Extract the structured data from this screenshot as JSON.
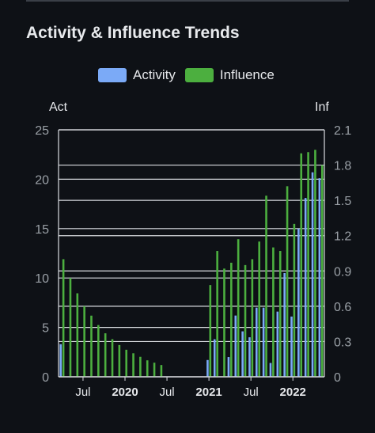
{
  "title": "Activity & Influence Trends",
  "legend": [
    {
      "label": "Activity",
      "color": "#7baaf7"
    },
    {
      "label": "Influence",
      "color": "#4caf3f"
    }
  ],
  "chart_data": {
    "type": "bar",
    "left_axis": {
      "title": "Act",
      "min": 0,
      "max": 25,
      "ticks": [
        "0",
        "5",
        "10",
        "15",
        "20",
        "25"
      ]
    },
    "right_axis": {
      "title": "Inf",
      "min": 0,
      "max": 2.1,
      "ticks": [
        "0",
        "0.3",
        "0.6",
        "0.9",
        "1.2",
        "1.5",
        "1.8",
        "2.1"
      ]
    },
    "x_ticks": [
      {
        "label": "Jul",
        "index": 3,
        "bold": false
      },
      {
        "label": "2020",
        "index": 9,
        "bold": true
      },
      {
        "label": "Jul",
        "index": 15,
        "bold": false
      },
      {
        "label": "2021",
        "index": 21,
        "bold": true
      },
      {
        "label": "Jul",
        "index": 27,
        "bold": false
      },
      {
        "label": "2022",
        "index": 33,
        "bold": true
      }
    ],
    "series": [
      {
        "name": "Activity",
        "color": "#7baaf7",
        "values": [
          3.3,
          0,
          0,
          0,
          0,
          0,
          0,
          0,
          0,
          0,
          0,
          0,
          0,
          0,
          0,
          0,
          0,
          0,
          0,
          0,
          0,
          1.7,
          3.8,
          0,
          2.0,
          6.2,
          4.6,
          4.0,
          7.0,
          7.0,
          1.4,
          6.6,
          10.5,
          6.1,
          15.0,
          18.1,
          20.7,
          20.1
        ]
      },
      {
        "name": "Influence",
        "color": "#4caf3f",
        "values": [
          1.0,
          0.84,
          0.71,
          0.6,
          0.52,
          0.44,
          0.37,
          0.32,
          0.27,
          0.23,
          0.2,
          0.17,
          0.14,
          0.12,
          0.1,
          0,
          0,
          0,
          0,
          0,
          0,
          0.78,
          1.07,
          0.92,
          0.97,
          1.17,
          0.95,
          1.0,
          1.15,
          1.54,
          1.1,
          1.07,
          1.62,
          1.3,
          1.9,
          1.91,
          1.93,
          1.8
        ]
      }
    ]
  }
}
